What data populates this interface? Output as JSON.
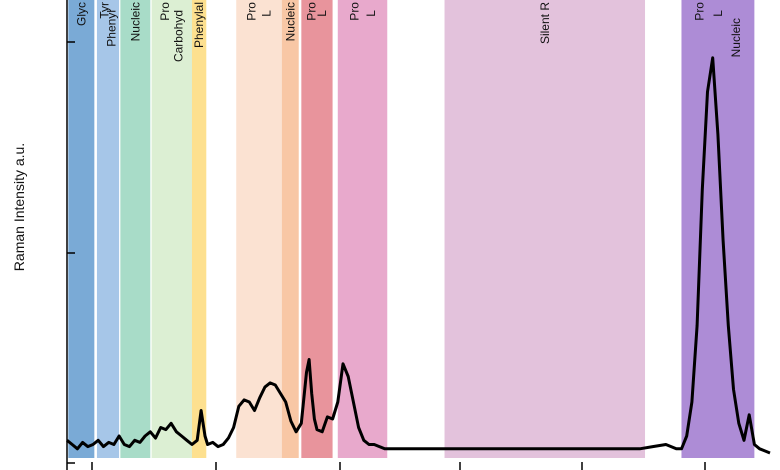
{
  "chart_data": {
    "type": "line",
    "ylabel": "Raman Intensity a.u.",
    "xlabel": "",
    "xlim": [
      400,
      3100
    ],
    "ylim": [
      0,
      1.0
    ],
    "grid": false,
    "bands": [
      {
        "x0": 405,
        "x1": 505,
        "color": "#7aaad6",
        "labels": [
          "Glyc"
        ]
      },
      {
        "x0": 515,
        "x1": 600,
        "color": "#a6c6e8",
        "labels": [
          "Tyr",
          "Phenyl"
        ]
      },
      {
        "x0": 605,
        "x1": 720,
        "color": "#a8dcc8",
        "labels": [
          "Nucleic"
        ]
      },
      {
        "x0": 725,
        "x1": 880,
        "color": "#dcefd3",
        "labels": [
          "Pro",
          "Carbohyd"
        ]
      },
      {
        "x0": 880,
        "x1": 935,
        "color": "#fde08f",
        "labels": [
          "Phenylal"
        ]
      },
      {
        "x0": 1050,
        "x1": 1225,
        "color": "#fbe2d2",
        "labels": [
          "Pro",
          "L"
        ]
      },
      {
        "x0": 1225,
        "x1": 1290,
        "color": "#f8c7a5",
        "labels": [
          "Nucleic"
        ]
      },
      {
        "x0": 1300,
        "x1": 1420,
        "color": "#e8949c",
        "labels": [
          "Pro",
          "L"
        ]
      },
      {
        "x0": 1440,
        "x1": 1630,
        "color": "#e8a9cc",
        "labels": [
          "Pro",
          "L"
        ]
      },
      {
        "x0": 1850,
        "x1": 2620,
        "color": "#e3c2dc",
        "labels": [
          "Silent R"
        ]
      },
      {
        "x0": 2760,
        "x1": 3040,
        "color": "#ad8cd6",
        "labels": [
          "Pro",
          "L",
          "Nucleic"
        ]
      }
    ],
    "x": [
      400,
      420,
      440,
      460,
      480,
      500,
      520,
      540,
      560,
      580,
      600,
      620,
      640,
      660,
      680,
      700,
      720,
      740,
      760,
      780,
      800,
      820,
      840,
      860,
      880,
      900,
      915,
      930,
      940,
      960,
      980,
      1000,
      1020,
      1040,
      1060,
      1080,
      1100,
      1120,
      1140,
      1160,
      1180,
      1200,
      1220,
      1240,
      1260,
      1280,
      1300,
      1320,
      1330,
      1340,
      1350,
      1360,
      1380,
      1400,
      1420,
      1440,
      1460,
      1480,
      1500,
      1520,
      1540,
      1560,
      1580,
      1600,
      1620,
      1640,
      1660,
      1700,
      1800,
      1900,
      2000,
      2100,
      2200,
      2300,
      2400,
      2500,
      2600,
      2650,
      2700,
      2720,
      2740,
      2760,
      2780,
      2800,
      2820,
      2840,
      2860,
      2880,
      2900,
      2920,
      2940,
      2960,
      2980,
      3000,
      3020,
      3040,
      3060,
      3080,
      3100
    ],
    "y": [
      0.03,
      0.02,
      0.01,
      0.025,
      0.015,
      0.02,
      0.03,
      0.015,
      0.025,
      0.02,
      0.04,
      0.02,
      0.015,
      0.03,
      0.025,
      0.04,
      0.05,
      0.035,
      0.06,
      0.055,
      0.07,
      0.05,
      0.04,
      0.03,
      0.02,
      0.03,
      0.1,
      0.04,
      0.02,
      0.025,
      0.015,
      0.02,
      0.035,
      0.06,
      0.11,
      0.125,
      0.12,
      0.1,
      0.13,
      0.155,
      0.165,
      0.16,
      0.14,
      0.12,
      0.075,
      0.05,
      0.07,
      0.19,
      0.22,
      0.14,
      0.08,
      0.055,
      0.05,
      0.085,
      0.08,
      0.12,
      0.21,
      0.18,
      0.12,
      0.06,
      0.03,
      0.02,
      0.02,
      0.015,
      0.01,
      0.01,
      0.01,
      0.01,
      0.01,
      0.01,
      0.01,
      0.01,
      0.01,
      0.01,
      0.01,
      0.01,
      0.01,
      0.015,
      0.02,
      0.015,
      0.01,
      0.01,
      0.04,
      0.12,
      0.3,
      0.62,
      0.85,
      0.93,
      0.75,
      0.5,
      0.3,
      0.15,
      0.07,
      0.03,
      0.09,
      0.02,
      0.01,
      0.005,
      0.0
    ]
  }
}
